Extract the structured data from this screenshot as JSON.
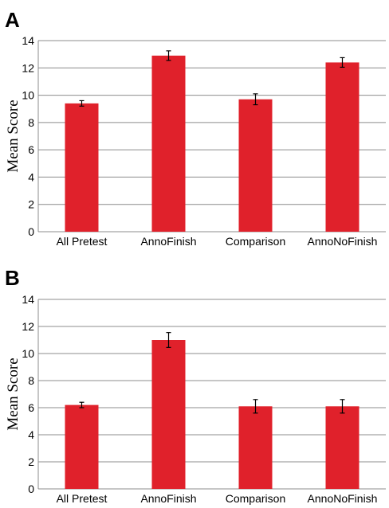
{
  "chart_data": [
    {
      "panel": "A",
      "type": "bar",
      "categories": [
        "All Pretest",
        "AnnoFinish",
        "Comparison",
        "AnnoNoFinish"
      ],
      "values": [
        9.4,
        12.9,
        9.7,
        12.4
      ],
      "errors": [
        0.2,
        0.35,
        0.4,
        0.35
      ],
      "xlabel": "",
      "ylabel": "Mean Score",
      "ylim": [
        0,
        14
      ],
      "yticks": [
        0,
        2,
        4,
        6,
        8,
        10,
        12,
        14
      ],
      "grid": true,
      "color": "#e0212b"
    },
    {
      "panel": "B",
      "type": "bar",
      "categories": [
        "All Pretest",
        "AnnoFinish",
        "Comparison",
        "AnnoNoFinish"
      ],
      "values": [
        6.2,
        11.0,
        6.1,
        6.1
      ],
      "errors": [
        0.2,
        0.55,
        0.5,
        0.5
      ],
      "xlabel": "",
      "ylabel": "Mean Score",
      "ylim": [
        0,
        14
      ],
      "yticks": [
        0,
        2,
        4,
        6,
        8,
        10,
        12,
        14
      ],
      "grid": true,
      "color": "#e0212b"
    }
  ]
}
